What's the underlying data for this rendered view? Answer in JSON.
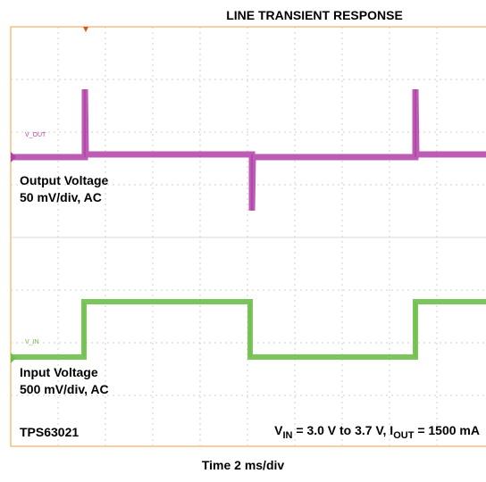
{
  "chart_data": {
    "type": "oscilloscope",
    "title": "LINE TRANSIENT RESPONSE",
    "x_label": "Time 2 ms/div",
    "channel_1": {
      "tag": "V_OUT",
      "name": "Output Voltage",
      "scale": "50 mV/div, AC"
    },
    "channel_2": {
      "tag": "V_IN",
      "name": "Input Voltage",
      "scale": "500 mV/div, AC"
    },
    "device": "TPS63021",
    "conditions": [
      "V",
      "IN",
      " = 3.0 V to 3.7 V, I",
      "OUT",
      " = 1500 mA"
    ]
  }
}
